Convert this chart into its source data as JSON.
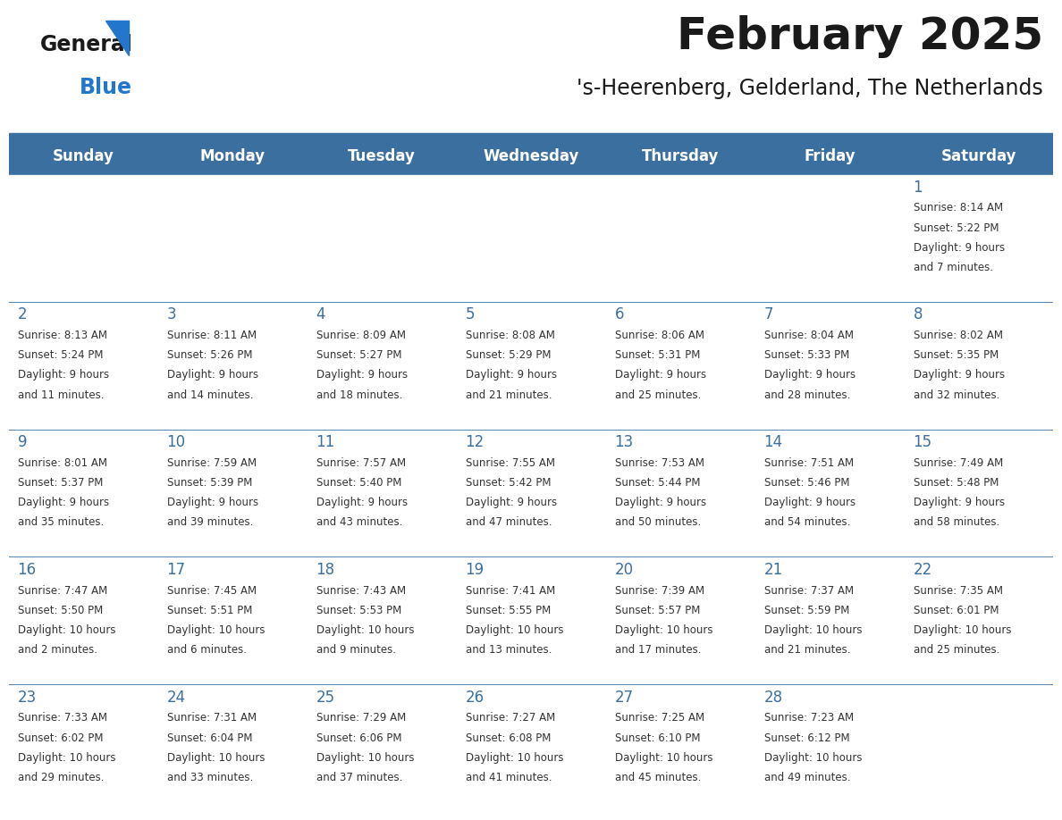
{
  "title": "February 2025",
  "subtitle": "'s-Heerenberg, Gelderland, The Netherlands",
  "header_bg_color": "#3a6f9f",
  "header_text_color": "#ffffff",
  "cell_bg_light": "#efefef",
  "cell_bg_white": "#ffffff",
  "cell_border_color": "#3a6f9f",
  "day_number_color": "#3a6f9f",
  "info_text_color": "#333333",
  "weekdays": [
    "Sunday",
    "Monday",
    "Tuesday",
    "Wednesday",
    "Thursday",
    "Friday",
    "Saturday"
  ],
  "weeks": [
    [
      {
        "day": null,
        "sunrise": null,
        "sunset": null,
        "daylight": null
      },
      {
        "day": null,
        "sunrise": null,
        "sunset": null,
        "daylight": null
      },
      {
        "day": null,
        "sunrise": null,
        "sunset": null,
        "daylight": null
      },
      {
        "day": null,
        "sunrise": null,
        "sunset": null,
        "daylight": null
      },
      {
        "day": null,
        "sunrise": null,
        "sunset": null,
        "daylight": null
      },
      {
        "day": null,
        "sunrise": null,
        "sunset": null,
        "daylight": null
      },
      {
        "day": 1,
        "sunrise": "8:14 AM",
        "sunset": "5:22 PM",
        "daylight": "9 hours and 7 minutes."
      }
    ],
    [
      {
        "day": 2,
        "sunrise": "8:13 AM",
        "sunset": "5:24 PM",
        "daylight": "9 hours and 11 minutes."
      },
      {
        "day": 3,
        "sunrise": "8:11 AM",
        "sunset": "5:26 PM",
        "daylight": "9 hours and 14 minutes."
      },
      {
        "day": 4,
        "sunrise": "8:09 AM",
        "sunset": "5:27 PM",
        "daylight": "9 hours and 18 minutes."
      },
      {
        "day": 5,
        "sunrise": "8:08 AM",
        "sunset": "5:29 PM",
        "daylight": "9 hours and 21 minutes."
      },
      {
        "day": 6,
        "sunrise": "8:06 AM",
        "sunset": "5:31 PM",
        "daylight": "9 hours and 25 minutes."
      },
      {
        "day": 7,
        "sunrise": "8:04 AM",
        "sunset": "5:33 PM",
        "daylight": "9 hours and 28 minutes."
      },
      {
        "day": 8,
        "sunrise": "8:02 AM",
        "sunset": "5:35 PM",
        "daylight": "9 hours and 32 minutes."
      }
    ],
    [
      {
        "day": 9,
        "sunrise": "8:01 AM",
        "sunset": "5:37 PM",
        "daylight": "9 hours and 35 minutes."
      },
      {
        "day": 10,
        "sunrise": "7:59 AM",
        "sunset": "5:39 PM",
        "daylight": "9 hours and 39 minutes."
      },
      {
        "day": 11,
        "sunrise": "7:57 AM",
        "sunset": "5:40 PM",
        "daylight": "9 hours and 43 minutes."
      },
      {
        "day": 12,
        "sunrise": "7:55 AM",
        "sunset": "5:42 PM",
        "daylight": "9 hours and 47 minutes."
      },
      {
        "day": 13,
        "sunrise": "7:53 AM",
        "sunset": "5:44 PM",
        "daylight": "9 hours and 50 minutes."
      },
      {
        "day": 14,
        "sunrise": "7:51 AM",
        "sunset": "5:46 PM",
        "daylight": "9 hours and 54 minutes."
      },
      {
        "day": 15,
        "sunrise": "7:49 AM",
        "sunset": "5:48 PM",
        "daylight": "9 hours and 58 minutes."
      }
    ],
    [
      {
        "day": 16,
        "sunrise": "7:47 AM",
        "sunset": "5:50 PM",
        "daylight": "10 hours and 2 minutes."
      },
      {
        "day": 17,
        "sunrise": "7:45 AM",
        "sunset": "5:51 PM",
        "daylight": "10 hours and 6 minutes."
      },
      {
        "day": 18,
        "sunrise": "7:43 AM",
        "sunset": "5:53 PM",
        "daylight": "10 hours and 9 minutes."
      },
      {
        "day": 19,
        "sunrise": "7:41 AM",
        "sunset": "5:55 PM",
        "daylight": "10 hours and 13 minutes."
      },
      {
        "day": 20,
        "sunrise": "7:39 AM",
        "sunset": "5:57 PM",
        "daylight": "10 hours and 17 minutes."
      },
      {
        "day": 21,
        "sunrise": "7:37 AM",
        "sunset": "5:59 PM",
        "daylight": "10 hours and 21 minutes."
      },
      {
        "day": 22,
        "sunrise": "7:35 AM",
        "sunset": "6:01 PM",
        "daylight": "10 hours and 25 minutes."
      }
    ],
    [
      {
        "day": 23,
        "sunrise": "7:33 AM",
        "sunset": "6:02 PM",
        "daylight": "10 hours and 29 minutes."
      },
      {
        "day": 24,
        "sunrise": "7:31 AM",
        "sunset": "6:04 PM",
        "daylight": "10 hours and 33 minutes."
      },
      {
        "day": 25,
        "sunrise": "7:29 AM",
        "sunset": "6:06 PM",
        "daylight": "10 hours and 37 minutes."
      },
      {
        "day": 26,
        "sunrise": "7:27 AM",
        "sunset": "6:08 PM",
        "daylight": "10 hours and 41 minutes."
      },
      {
        "day": 27,
        "sunrise": "7:25 AM",
        "sunset": "6:10 PM",
        "daylight": "10 hours and 45 minutes."
      },
      {
        "day": 28,
        "sunrise": "7:23 AM",
        "sunset": "6:12 PM",
        "daylight": "10 hours and 49 minutes."
      },
      {
        "day": null,
        "sunrise": null,
        "sunset": null,
        "daylight": null
      }
    ]
  ],
  "logo_text1": "General",
  "logo_text2": "Blue",
  "logo_color1": "#1a1a1a",
  "logo_color2": "#2277cc",
  "logo_triangle_color": "#2277cc",
  "title_fontsize": 36,
  "subtitle_fontsize": 17,
  "header_fontsize": 12,
  "day_num_fontsize": 12,
  "cell_text_fontsize": 8.5
}
